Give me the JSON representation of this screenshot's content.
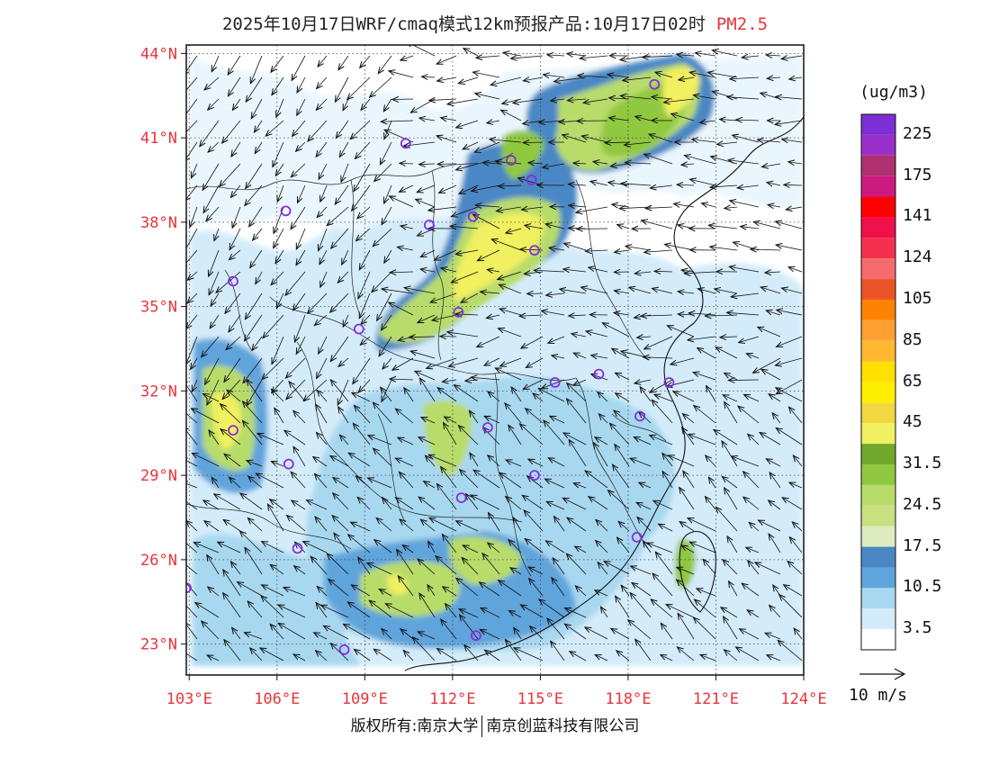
{
  "title": {
    "text": "2025年10月17日WRF/cmaq模式12km预报产品:10月17日02时",
    "pollutant": "PM2.5"
  },
  "map": {
    "lat_labels": [
      {
        "value": 44,
        "text": "44°N"
      },
      {
        "value": 41,
        "text": "41°N"
      },
      {
        "value": 38,
        "text": "38°N"
      },
      {
        "value": 35,
        "text": "35°N"
      },
      {
        "value": 32,
        "text": "32°N"
      },
      {
        "value": 29,
        "text": "29°N"
      },
      {
        "value": 26,
        "text": "26°N"
      },
      {
        "value": 23,
        "text": "23°N"
      }
    ],
    "lon_labels": [
      {
        "value": 103,
        "text": "103°E"
      },
      {
        "value": 106,
        "text": "106°E"
      },
      {
        "value": 109,
        "text": "109°E"
      },
      {
        "value": 112,
        "text": "112°E"
      },
      {
        "value": 115,
        "text": "115°E"
      },
      {
        "value": 118,
        "text": "118°E"
      },
      {
        "value": 121,
        "text": "121°E"
      },
      {
        "value": 124,
        "text": "124°E"
      }
    ],
    "lon_range": [
      102.9,
      124
    ],
    "lat_range": [
      21.9,
      44.3
    ],
    "grid": "dotted"
  },
  "stations": [
    {
      "lon": 118.9,
      "lat": 42.9
    },
    {
      "lon": 110.4,
      "lat": 40.8
    },
    {
      "lon": 114.0,
      "lat": 40.2
    },
    {
      "lon": 114.7,
      "lat": 39.5
    },
    {
      "lon": 106.3,
      "lat": 38.4
    },
    {
      "lon": 112.7,
      "lat": 38.2
    },
    {
      "lon": 111.2,
      "lat": 37.9
    },
    {
      "lon": 114.8,
      "lat": 37.0
    },
    {
      "lon": 104.5,
      "lat": 35.9
    },
    {
      "lon": 112.2,
      "lat": 34.8
    },
    {
      "lon": 108.8,
      "lat": 34.2
    },
    {
      "lon": 117.0,
      "lat": 32.6
    },
    {
      "lon": 115.5,
      "lat": 32.3
    },
    {
      "lon": 119.4,
      "lat": 32.3
    },
    {
      "lon": 118.4,
      "lat": 31.1
    },
    {
      "lon": 104.5,
      "lat": 30.6
    },
    {
      "lon": 113.2,
      "lat": 30.7
    },
    {
      "lon": 106.4,
      "lat": 29.4
    },
    {
      "lon": 114.8,
      "lat": 29.0
    },
    {
      "lon": 112.3,
      "lat": 28.2
    },
    {
      "lon": 118.3,
      "lat": 26.8
    },
    {
      "lon": 106.7,
      "lat": 26.4
    },
    {
      "lon": 102.9,
      "lat": 25.0
    },
    {
      "lon": 112.8,
      "lat": 23.3
    },
    {
      "lon": 108.3,
      "lat": 22.8
    }
  ],
  "colorbar": {
    "title": "(ug/m3)",
    "colors": [
      "#7b2fd4",
      "#9a30c8",
      "#b03070",
      "#cc1a80",
      "#ff0000",
      "#f0104a",
      "#f5304e",
      "#f56a6a",
      "#ec5428",
      "#ff8200",
      "#ffa030",
      "#ffb830",
      "#ffe000",
      "#fff000",
      "#f2d840",
      "#f0f060",
      "#6fa82a",
      "#90c840",
      "#b8dc6a",
      "#c8e080",
      "#dcecc0",
      "#4a88c4",
      "#60a4dc",
      "#a8d8f0",
      "#d4ecfa",
      "#ffffff"
    ],
    "labels": [
      "225",
      "175",
      "141",
      "124",
      "105",
      "85",
      "65",
      "45",
      "31.5",
      "24.5",
      "17.5",
      "10.5",
      "3.5"
    ]
  },
  "wind_scale": {
    "label": "10 m/s"
  },
  "footer": {
    "left": "版权所有:南京大学",
    "right": "南京创蓝科技有限公司"
  }
}
